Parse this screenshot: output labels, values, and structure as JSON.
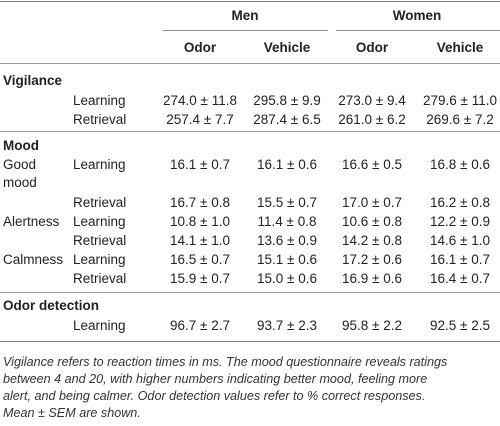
{
  "table": {
    "header": {
      "groups": [
        "Men",
        "Women"
      ],
      "columns": [
        "Odor",
        "Vehicle",
        "Odor",
        "Vehicle"
      ]
    },
    "sections": [
      {
        "title": "Vigilance",
        "rows": [
          {
            "label": "",
            "phase": "Learning",
            "values": [
              "274.0 ± 11.8",
              "295.8 ± 9.9",
              "273.0 ± 9.4",
              "279.6 ± 11.0"
            ]
          },
          {
            "label": "",
            "phase": "Retrieval",
            "values": [
              "257.4 ± 7.7",
              "287.4 ± 6.5",
              "261.0 ± 6.2",
              "269.6 ± 7.2"
            ]
          }
        ]
      },
      {
        "title": "Mood",
        "rows": [
          {
            "label": "Good",
            "label2": "mood",
            "phase": "Learning",
            "values": [
              "16.1 ± 0.7",
              "16.1 ± 0.6",
              "16.6 ± 0.5",
              "16.8 ± 0.6"
            ]
          },
          {
            "label": "",
            "phase": "Retrieval",
            "values": [
              "16.7 ± 0.8",
              "15.5 ± 0.7",
              "17.0 ± 0.7",
              "16.2 ± 0.8"
            ]
          },
          {
            "label": "Alertness",
            "phase": "Learning",
            "values": [
              "10.8 ± 1.0",
              "11.4 ± 0.8",
              "10.6 ± 0.8",
              "12.2 ± 0.9"
            ]
          },
          {
            "label": "",
            "phase": "Retrieval",
            "values": [
              "14.1 ± 1.0",
              "13.6 ± 0.9",
              "14.2 ± 0.8",
              "14.6 ± 1.0"
            ]
          },
          {
            "label": "Calmness",
            "phase": "Learning",
            "values": [
              "16.5 ± 0.7",
              "15.1 ± 0.6",
              "17.2 ± 0.6",
              "16.1 ± 0.7"
            ]
          },
          {
            "label": "",
            "phase": "Retrieval",
            "values": [
              "15.9 ± 0.7",
              "15.0 ± 0.6",
              "16.9 ± 0.6",
              "16.4 ± 0.7"
            ]
          }
        ]
      },
      {
        "title": "Odor detection",
        "rows": [
          {
            "label": "",
            "phase": "Learning",
            "values": [
              "96.7 ± 2.7",
              "93.7 ± 2.3",
              "95.8 ± 2.2",
              "92.5 ± 2.5"
            ]
          }
        ]
      }
    ]
  },
  "footnote": {
    "lines": [
      "Vigilance refers to reaction times in ms. The mood questionnaire reveals ratings",
      "between 4 and 20, with higher numbers indicating better mood, feeling more",
      "alert, and being calmer. Odor detection values refer to % correct responses.",
      "Mean ± SEM are shown."
    ]
  }
}
